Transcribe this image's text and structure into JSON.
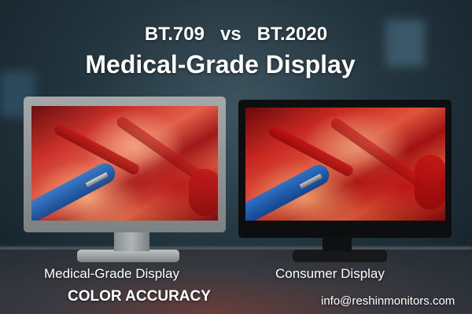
{
  "header": {
    "title_line1": "BT.709   vs   BT.2020",
    "title_line2": "Medical-Grade Display"
  },
  "monitors": [
    {
      "label": "Medical-Grade Display",
      "bezel_color": "#8e9494"
    },
    {
      "label": "Consumer Display",
      "bezel_color": "#121416"
    }
  ],
  "tagline": "COLOR ACCURACY",
  "contact": "info@reshinmonitors.com"
}
